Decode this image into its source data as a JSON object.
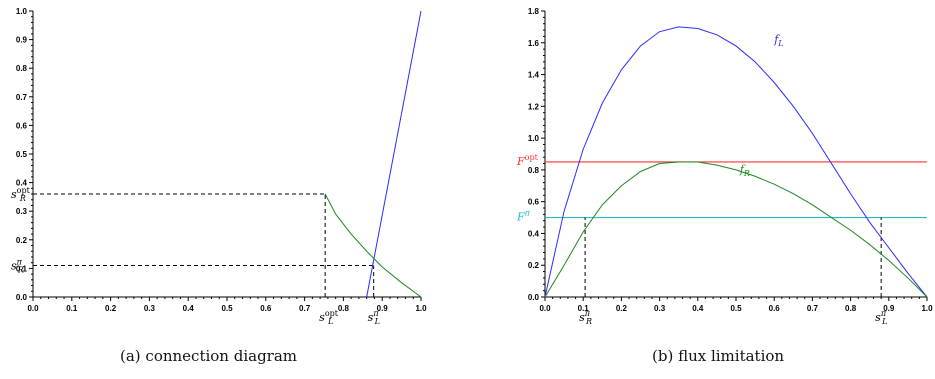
{
  "captions": {
    "a": "(a) connection diagram",
    "b": "(b) flux limitation"
  },
  "colors": {
    "blue": "#2b2bff",
    "green": "#1d8a1d",
    "red": "#ff3333",
    "cyan": "#22bbcc",
    "axis": "#000000",
    "dash": "#000000"
  },
  "chart_data": [
    {
      "type": "line",
      "title": "",
      "xlabel": "",
      "ylabel": "",
      "xlim": [
        0,
        1
      ],
      "ylim": [
        0,
        1
      ],
      "grid": false,
      "xticks": [
        "0.0",
        "0.1",
        "0.2",
        "0.3",
        "0.4",
        "0.5",
        "0.6",
        "0.7",
        "0.8",
        "0.9",
        "1.0"
      ],
      "yticks": [
        "0.0",
        "0.1",
        "0.2",
        "0.3",
        "0.4",
        "0.5",
        "0.6",
        "0.7",
        "0.8",
        "0.9",
        "1.0"
      ],
      "series": [
        {
          "color": "blue",
          "x": [
            0.86,
            1.0
          ],
          "y": [
            0.0,
            1.0
          ]
        },
        {
          "color": "green",
          "x": [
            0.753,
            0.78,
            0.82,
            0.86,
            0.9,
            0.95,
            1.0
          ],
          "y": [
            0.36,
            0.29,
            0.22,
            0.16,
            0.105,
            0.05,
            0.0
          ]
        }
      ],
      "dashed": [
        {
          "label": "s_R^opt",
          "value": 0.36,
          "x_end": 0.753
        },
        {
          "label": "s_R^π",
          "value": 0.11,
          "x_end": 0.878
        }
      ],
      "x_markers": [
        {
          "label": "s_L^opt",
          "value": 0.753,
          "y_end": 0.36
        },
        {
          "label": "s_L^π",
          "value": 0.878,
          "y_end": 0.11
        }
      ],
      "marker_text": {
        "s": "s",
        "R": "R",
        "L": "L",
        "opt": "opt",
        "pi": "π"
      }
    },
    {
      "type": "line",
      "title": "",
      "xlabel": "",
      "ylabel": "",
      "xlim": [
        0,
        1
      ],
      "ylim": [
        0,
        1.8
      ],
      "grid": false,
      "xticks": [
        "0.0",
        "0.1",
        "0.2",
        "0.3",
        "0.4",
        "0.5",
        "0.6",
        "0.7",
        "0.8",
        "0.9",
        "1.0"
      ],
      "yticks": [
        "0.0",
        "0.2",
        "0.4",
        "0.6",
        "0.8",
        "1.0",
        "1.2",
        "1.4",
        "1.6",
        "1.8"
      ],
      "series": [
        {
          "name": "f_L",
          "color": "blue",
          "x": [
            0,
            0.05,
            0.1,
            0.15,
            0.2,
            0.25,
            0.3,
            0.35,
            0.4,
            0.45,
            0.5,
            0.55,
            0.6,
            0.65,
            0.7,
            0.75,
            0.8,
            0.85,
            0.9,
            0.95,
            1.0
          ],
          "y": [
            0,
            0.54,
            0.93,
            1.22,
            1.43,
            1.58,
            1.67,
            1.7,
            1.69,
            1.65,
            1.58,
            1.48,
            1.35,
            1.2,
            1.03,
            0.84,
            0.65,
            0.47,
            0.31,
            0.15,
            0
          ]
        },
        {
          "name": "f_R",
          "color": "green",
          "x": [
            0,
            0.05,
            0.1,
            0.15,
            0.2,
            0.25,
            0.3,
            0.35,
            0.4,
            0.45,
            0.5,
            0.55,
            0.6,
            0.65,
            0.7,
            0.75,
            0.8,
            0.85,
            0.9,
            0.95,
            1.0
          ],
          "y": [
            0,
            0.2,
            0.41,
            0.58,
            0.7,
            0.79,
            0.84,
            0.85,
            0.85,
            0.83,
            0.8,
            0.76,
            0.71,
            0.65,
            0.58,
            0.5,
            0.42,
            0.33,
            0.23,
            0.12,
            0
          ]
        }
      ],
      "hlines": [
        {
          "label": "F^opt",
          "value": 0.85,
          "color": "red"
        },
        {
          "label": "F^π",
          "value": 0.5,
          "color": "cyan"
        }
      ],
      "x_markers": [
        {
          "label": "s_R^π",
          "value": 0.105,
          "y_end": 0.5
        },
        {
          "label": "s_L^π",
          "value": 0.88,
          "y_end": 0.5
        }
      ],
      "marker_text": {
        "F": "F",
        "s": "s",
        "R": "R",
        "L": "L",
        "opt": "opt",
        "pi": "π",
        "fL": "f",
        "fR": "f"
      }
    }
  ]
}
